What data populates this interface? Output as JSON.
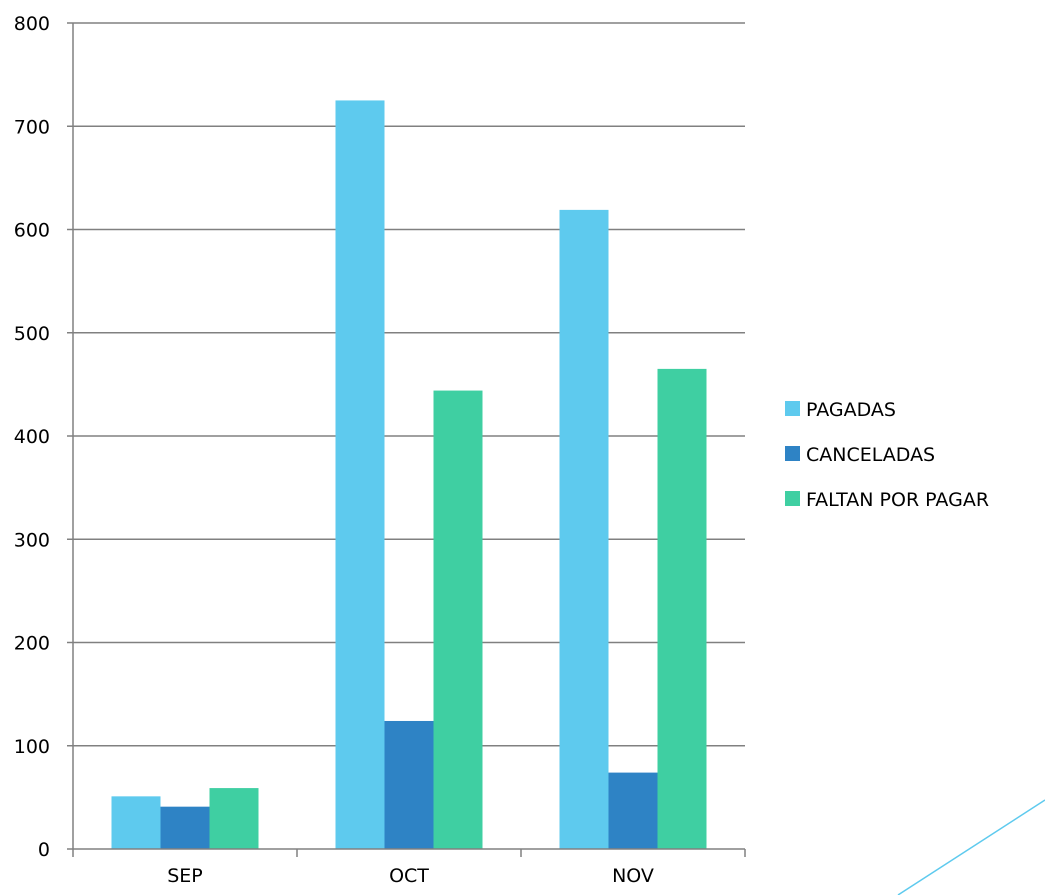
{
  "chart_data": {
    "type": "bar",
    "categories": [
      "SEP",
      "OCT",
      "NOV"
    ],
    "series": [
      {
        "name": "PAGADAS",
        "color": "#5ecaee",
        "values": [
          51,
          725,
          619
        ]
      },
      {
        "name": "CANCELADAS",
        "color": "#2e83c5",
        "values": [
          41,
          124,
          74
        ]
      },
      {
        "name": "FALTAN POR PAGAR",
        "color": "#3fcfa2",
        "values": [
          59,
          444,
          465
        ]
      }
    ],
    "yticks": [
      "0",
      "100",
      "200",
      "300",
      "400",
      "500",
      "600",
      "700",
      "800"
    ],
    "ylim": [
      0,
      800
    ],
    "grid": true,
    "legend_position": "right",
    "title": "",
    "xlabel": "",
    "ylabel": ""
  },
  "colors": {
    "grid": "#808080",
    "axis": "#808080",
    "decoration_line": "#5ecaee"
  }
}
